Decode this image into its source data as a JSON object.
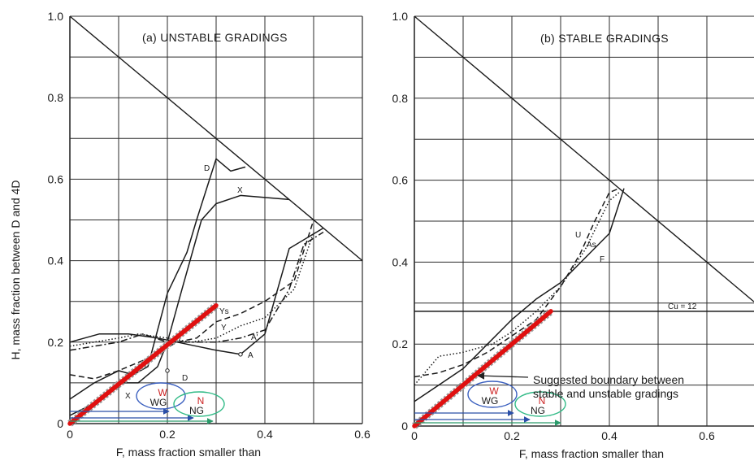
{
  "chart_data": [
    {
      "type": "line",
      "panel": "a",
      "title": "(a) UNSTABLE GRADINGS",
      "xlabel": "F, mass fraction smaller than",
      "ylabel": "H, mass fraction between D and 4D",
      "xlim": [
        0,
        0.6
      ],
      "ylim": [
        0,
        1.0
      ],
      "x_ticks": [
        "0",
        "0.2",
        "0.4",
        "0.6"
      ],
      "y_ticks": [
        "0",
        "0.2",
        "0.4",
        "0.6",
        "0.8",
        "1.0"
      ],
      "grid": true,
      "boundary_line": [
        [
          0,
          1.0
        ],
        [
          0.6,
          0.4
        ]
      ],
      "suggested_boundary": [
        [
          0,
          0
        ],
        [
          0.3,
          0.29
        ]
      ],
      "series": [
        {
          "name": "D",
          "style": "solid",
          "x": [
            0,
            0.05,
            0.1,
            0.13,
            0.16,
            0.2,
            0.24,
            0.26,
            0.3,
            0.33,
            0.36
          ],
          "y": [
            0.06,
            0.1,
            0.13,
            0.12,
            0.14,
            0.32,
            0.42,
            0.5,
            0.65,
            0.62,
            0.63
          ]
        },
        {
          "name": "X",
          "style": "solid",
          "x": [
            0,
            0.05,
            0.1,
            0.14,
            0.18,
            0.2,
            0.23,
            0.27,
            0.3,
            0.35,
            0.45
          ],
          "y": [
            0.02,
            0.05,
            0.1,
            0.1,
            0.14,
            0.2,
            0.33,
            0.5,
            0.54,
            0.56,
            0.55
          ]
        },
        {
          "name": "Ys",
          "style": "dashed",
          "x": [
            0,
            0.05,
            0.1,
            0.16,
            0.22,
            0.26,
            0.3,
            0.35,
            0.4,
            0.46,
            0.5
          ],
          "y": [
            0.12,
            0.11,
            0.13,
            0.16,
            0.2,
            0.21,
            0.25,
            0.27,
            0.3,
            0.35,
            0.5
          ]
        },
        {
          "name": "Y",
          "style": "dotted",
          "x": [
            0,
            0.05,
            0.1,
            0.14,
            0.2,
            0.25,
            0.3,
            0.35,
            0.4,
            0.46,
            0.5
          ],
          "y": [
            0.19,
            0.2,
            0.21,
            0.22,
            0.21,
            0.2,
            0.21,
            0.24,
            0.26,
            0.33,
            0.47
          ]
        },
        {
          "name": "A'",
          "style": "dashdot",
          "x": [
            0,
            0.1,
            0.15,
            0.2,
            0.25,
            0.3,
            0.35,
            0.4,
            0.45,
            0.48,
            0.52
          ],
          "y": [
            0.18,
            0.2,
            0.22,
            0.2,
            0.2,
            0.2,
            0.21,
            0.23,
            0.33,
            0.44,
            0.47
          ]
        },
        {
          "name": "A",
          "style": "solid",
          "x": [
            0,
            0.06,
            0.12,
            0.18,
            0.22,
            0.26,
            0.3,
            0.35,
            0.4,
            0.45,
            0.52
          ],
          "y": [
            0.2,
            0.22,
            0.22,
            0.21,
            0.2,
            0.19,
            0.18,
            0.17,
            0.22,
            0.43,
            0.48
          ]
        }
      ],
      "curve_labels": [
        "D",
        "X",
        "Ys",
        "Y",
        "A'",
        "A",
        "D",
        "X"
      ],
      "circles": [
        {
          "label": "W",
          "sublabel": "WG",
          "color": "#3a5fbf",
          "x": 0.17,
          "y": 0.06
        },
        {
          "label": "N",
          "sublabel": "NG",
          "color": "#33bb88",
          "x": 0.27,
          "y": 0.04
        }
      ]
    },
    {
      "type": "line",
      "panel": "b",
      "title": "(b) STABLE GRADINGS",
      "xlabel": "F, mass fraction smaller than",
      "ylabel": "",
      "xlim": [
        0,
        0.7
      ],
      "ylim": [
        0,
        1.0
      ],
      "x_ticks": [
        "0",
        "0.2",
        "0.4",
        "0.6"
      ],
      "y_ticks": [
        "0",
        "0.2",
        "0.4",
        "0.6",
        "0.8",
        "1.0"
      ],
      "grid": true,
      "boundary_line": [
        [
          0,
          1.0
        ],
        [
          0.7,
          0.3
        ]
      ],
      "cu_line": {
        "label": "Cu = 12",
        "y": 0.28
      },
      "suggested_boundary": [
        [
          0,
          0
        ],
        [
          0.28,
          0.28
        ]
      ],
      "annotation": "Suggested boundary between stable and unstable gradings",
      "series": [
        {
          "name": "U",
          "style": "dashed",
          "x": [
            0,
            0.05,
            0.1,
            0.15,
            0.2,
            0.25,
            0.3,
            0.34,
            0.37,
            0.4,
            0.42
          ],
          "y": [
            0.12,
            0.13,
            0.15,
            0.18,
            0.22,
            0.26,
            0.34,
            0.42,
            0.5,
            0.57,
            0.58
          ]
        },
        {
          "name": "As",
          "style": "dotted",
          "x": [
            0,
            0.05,
            0.1,
            0.16,
            0.2,
            0.25,
            0.3,
            0.35,
            0.4,
            0.42
          ],
          "y": [
            0.1,
            0.17,
            0.18,
            0.2,
            0.23,
            0.28,
            0.34,
            0.43,
            0.55,
            0.57
          ]
        },
        {
          "name": "F",
          "style": "solid",
          "x": [
            0,
            0.05,
            0.1,
            0.15,
            0.2,
            0.25,
            0.3,
            0.35,
            0.4,
            0.43
          ],
          "y": [
            0.06,
            0.1,
            0.14,
            0.2,
            0.26,
            0.31,
            0.35,
            0.41,
            0.47,
            0.58
          ]
        }
      ],
      "curve_labels": [
        "U",
        "As",
        "F"
      ],
      "circles": [
        {
          "label": "W",
          "sublabel": "WG",
          "color": "#3a5fbf",
          "x": 0.17,
          "y": 0.06
        },
        {
          "label": "N",
          "sublabel": "NG",
          "color": "#33bb88",
          "x": 0.27,
          "y": 0.05
        }
      ]
    }
  ]
}
